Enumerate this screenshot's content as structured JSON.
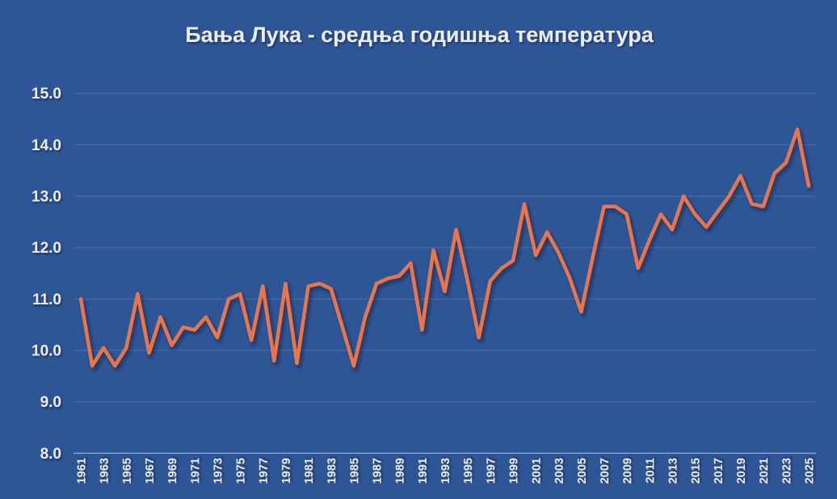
{
  "chart_data": {
    "type": "line",
    "title": "Бања Лука - средња годишња температура",
    "x": [
      1961,
      1962,
      1963,
      1964,
      1965,
      1966,
      1967,
      1968,
      1969,
      1970,
      1971,
      1972,
      1973,
      1974,
      1975,
      1976,
      1977,
      1978,
      1979,
      1980,
      1981,
      1982,
      1983,
      1984,
      1985,
      1986,
      1987,
      1988,
      1989,
      1990,
      1991,
      1992,
      1993,
      1994,
      1995,
      1996,
      1997,
      1998,
      1999,
      2000,
      2001,
      2002,
      2003,
      2004,
      2005,
      2006,
      2007,
      2008,
      2009,
      2010,
      2011,
      2012,
      2013,
      2014,
      2015,
      2016,
      2017,
      2018,
      2019,
      2020,
      2021,
      2022,
      2023,
      2024,
      2025
    ],
    "series": [
      {
        "name": "средња годишња температура",
        "values": [
          11.0,
          9.7,
          10.05,
          9.7,
          10.05,
          11.1,
          9.95,
          10.65,
          10.1,
          10.45,
          10.4,
          10.65,
          10.25,
          11.0,
          11.1,
          10.2,
          11.25,
          9.8,
          11.3,
          9.75,
          11.25,
          11.3,
          11.2,
          10.45,
          9.7,
          10.65,
          11.3,
          11.4,
          11.45,
          11.7,
          10.4,
          11.95,
          11.15,
          12.35,
          11.35,
          10.25,
          11.35,
          11.6,
          11.75,
          12.85,
          11.85,
          12.3,
          11.9,
          11.4,
          10.75,
          11.8,
          12.8,
          12.8,
          12.65,
          11.6,
          12.15,
          12.65,
          12.35,
          13.0,
          12.65,
          12.4,
          12.7,
          13.0,
          13.4,
          12.85,
          12.8,
          13.45,
          13.65,
          14.3,
          13.2
        ]
      }
    ],
    "xlabel": "",
    "ylabel": "",
    "ylim": [
      8.0,
      15.0
    ],
    "ytick_step": 1.0,
    "ytick_labels": [
      "15.0",
      "14.0",
      "13.0",
      "12.0",
      "11.0",
      "10.0",
      "9.0",
      "8.0"
    ],
    "xtick_labels": [
      "1961",
      "1963",
      "1965",
      "1967",
      "1969",
      "1971",
      "1973",
      "1975",
      "1977",
      "1979",
      "1981",
      "1983",
      "1985",
      "1987",
      "1989",
      "1991",
      "1993",
      "1995",
      "1997",
      "1999",
      "2001",
      "2003",
      "2005",
      "2007",
      "2009",
      "2011",
      "2013",
      "2015",
      "2017",
      "2019",
      "2021",
      "2023",
      "2025"
    ],
    "grid": true,
    "legend": false,
    "colors": {
      "background": "#2E5596",
      "line": "#E8744C",
      "gridline": "#4C6CA6",
      "axis_line": "#8FA5CE",
      "text": "#E9EDF5"
    }
  }
}
